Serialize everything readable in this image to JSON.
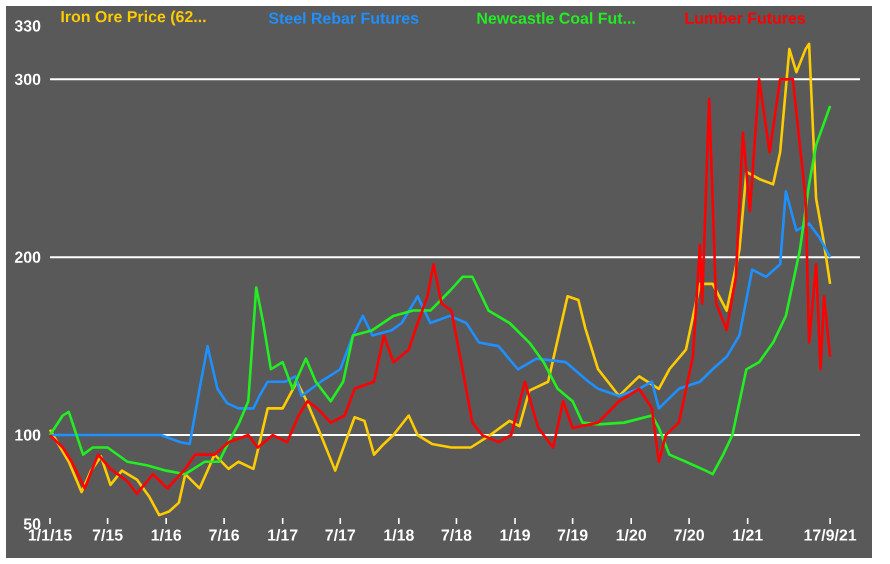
{
  "chart_data": {
    "type": "line",
    "legend": "top",
    "grid": "y",
    "line_style": "solid",
    "xlim": [
      "2015-01-01",
      "2021-12-20"
    ],
    "ylim": [
      50,
      330
    ],
    "yticks": [
      50,
      100,
      200,
      300,
      330
    ],
    "xticks": [
      {
        "value": "2015-01-01",
        "label": "1/1/15"
      },
      {
        "value": "2015-07-01",
        "label": "7/15"
      },
      {
        "value": "2016-01-01",
        "label": "1/16"
      },
      {
        "value": "2016-07-01",
        "label": "7/16"
      },
      {
        "value": "2017-01-01",
        "label": "1/17"
      },
      {
        "value": "2017-07-01",
        "label": "7/17"
      },
      {
        "value": "2018-01-01",
        "label": "1/18"
      },
      {
        "value": "2018-07-01",
        "label": "7/18"
      },
      {
        "value": "2019-01-01",
        "label": "1/19"
      },
      {
        "value": "2019-07-01",
        "label": "7/19"
      },
      {
        "value": "2020-01-01",
        "label": "1/20"
      },
      {
        "value": "2020-07-01",
        "label": "7/20"
      },
      {
        "value": "2021-01-01",
        "label": "1/21"
      },
      {
        "value": "2021-09-17",
        "label": "17/9/21"
      }
    ],
    "series": [
      {
        "name": "Iron Ore Price (62...",
        "color": "#ffcc00",
        "x": [
          "2015-01-01",
          "2015-03-01",
          "2015-04-10",
          "2015-05-10",
          "2015-06-10",
          "2015-07-10",
          "2015-08-15",
          "2015-10-01",
          "2015-11-10",
          "2015-12-10",
          "2016-01-10",
          "2016-02-10",
          "2016-03-01",
          "2016-04-15",
          "2016-06-01",
          "2016-07-15",
          "2016-08-15",
          "2016-10-01",
          "2016-11-15",
          "2017-01-01",
          "2017-02-15",
          "2017-03-15",
          "2017-05-01",
          "2017-06-15",
          "2017-07-15",
          "2017-08-15",
          "2017-09-15",
          "2017-10-15",
          "2017-11-15",
          "2017-12-15",
          "2018-02-01",
          "2018-03-01",
          "2018-04-15",
          "2018-06-15",
          "2018-08-15",
          "2018-10-15",
          "2018-12-15",
          "2019-01-15",
          "2019-02-15",
          "2019-04-15",
          "2019-06-15",
          "2019-07-19",
          "2019-08-10",
          "2019-09-19",
          "2019-11-24",
          "2020-01-26",
          "2020-03-28",
          "2020-04-30",
          "2020-06-21",
          "2020-08-04",
          "2020-09-13",
          "2020-10-27",
          "2020-12-06",
          "2020-12-28",
          "2021-02-06",
          "2021-03-22",
          "2021-04-13",
          "2021-05-12",
          "2021-06-03",
          "2021-07-02",
          "2021-07-13",
          "2021-08-04",
          "2021-08-26",
          "2021-09-17"
        ],
        "values": [
          103,
          85,
          68,
          80,
          88,
          72,
          80,
          75,
          65,
          55,
          57,
          62,
          78,
          70,
          89,
          81,
          85,
          81,
          115,
          115,
          130,
          120,
          100,
          80,
          95,
          110,
          108,
          89,
          95,
          100,
          111,
          100,
          95,
          93,
          93,
          100,
          108,
          105,
          125,
          130,
          178,
          176,
          160,
          137,
          122,
          133,
          126,
          137,
          148,
          185,
          185,
          170,
          204,
          248,
          244,
          241,
          259,
          317,
          304,
          317,
          320,
          233,
          211,
          185
        ]
      },
      {
        "name": "Steel Rebar Futures",
        "color": "#1e90ff",
        "x": [
          "2015-01-01",
          "2015-12-15",
          "2016-02-15",
          "2016-03-15",
          "2016-04-15",
          "2016-05-10",
          "2016-06-10",
          "2016-07-10",
          "2016-08-15",
          "2016-10-01",
          "2016-10-20",
          "2016-11-15",
          "2017-01-10",
          "2017-02-10",
          "2017-03-01",
          "2017-05-01",
          "2017-07-01",
          "2017-08-10",
          "2017-09-10",
          "2017-10-10",
          "2017-12-10",
          "2018-01-10",
          "2018-03-01",
          "2018-04-10",
          "2018-06-10",
          "2018-08-01",
          "2018-09-10",
          "2018-11-10",
          "2019-01-10",
          "2019-03-10",
          "2019-06-10",
          "2019-08-20",
          "2019-09-19",
          "2019-11-24",
          "2020-01-26",
          "2020-03-06",
          "2020-03-28",
          "2020-05-30",
          "2020-08-04",
          "2020-09-13",
          "2020-10-27",
          "2020-12-06",
          "2021-01-15",
          "2021-02-28",
          "2021-04-13",
          "2021-05-01",
          "2021-06-03",
          "2021-07-13",
          "2021-08-15",
          "2021-09-17"
        ],
        "values": [
          100,
          100,
          96,
          95,
          126,
          150,
          126,
          118,
          115,
          115,
          122,
          130,
          130,
          133,
          122,
          130,
          137,
          156,
          167,
          156,
          159,
          163,
          178,
          163,
          167,
          163,
          152,
          150,
          137,
          143,
          141,
          130,
          126,
          122,
          126,
          130,
          115,
          126,
          130,
          137,
          144,
          156,
          193,
          189,
          196,
          237,
          215,
          219,
          211,
          200
        ]
      },
      {
        "name": "Newcastle Coal Fut...",
        "color": "#22ee22",
        "x": [
          "2015-01-01",
          "2015-02-10",
          "2015-03-01",
          "2015-04-15",
          "2015-05-15",
          "2015-07-01",
          "2015-09-01",
          "2015-11-01",
          "2016-01-01",
          "2016-03-01",
          "2016-05-01",
          "2016-06-15",
          "2016-07-15",
          "2016-08-15",
          "2016-09-15",
          "2016-10-10",
          "2016-11-01",
          "2016-11-25",
          "2017-01-01",
          "2017-02-01",
          "2017-03-15",
          "2017-04-15",
          "2017-06-01",
          "2017-07-10",
          "2017-08-10",
          "2017-10-10",
          "2017-12-15",
          "2018-02-15",
          "2018-04-10",
          "2018-06-10",
          "2018-07-20",
          "2018-08-20",
          "2018-10-10",
          "2018-12-15",
          "2019-02-15",
          "2019-04-01",
          "2019-05-15",
          "2019-07-01",
          "2019-08-01",
          "2019-09-19",
          "2019-12-10",
          "2020-03-06",
          "2020-03-28",
          "2020-04-30",
          "2020-06-21",
          "2020-08-22",
          "2020-09-13",
          "2020-10-16",
          "2020-11-14",
          "2020-12-28",
          "2021-02-06",
          "2021-03-22",
          "2021-05-01",
          "2021-06-14",
          "2021-07-13",
          "2021-08-04",
          "2021-09-17"
        ],
        "values": [
          100,
          111,
          113,
          89,
          93,
          93,
          85,
          83,
          80,
          78,
          85,
          85,
          96,
          106,
          119,
          183,
          163,
          137,
          141,
          126,
          143,
          130,
          119,
          130,
          156,
          159,
          167,
          170,
          170,
          181,
          189,
          189,
          170,
          163,
          152,
          141,
          126,
          119,
          107,
          106,
          107,
          111,
          104,
          89,
          85,
          80,
          78,
          89,
          100,
          137,
          141,
          152,
          167,
          204,
          241,
          263,
          285
        ]
      },
      {
        "name": "Lumber Futures",
        "color": "#ff0000",
        "x": [
          "2015-01-01",
          "2015-02-10",
          "2015-03-10",
          "2015-04-20",
          "2015-06-01",
          "2015-07-10",
          "2015-09-01",
          "2015-10-01",
          "2015-11-20",
          "2016-01-05",
          "2016-03-01",
          "2016-04-01",
          "2016-06-01",
          "2016-07-15",
          "2016-09-15",
          "2016-10-15",
          "2016-12-01",
          "2017-01-15",
          "2017-02-20",
          "2017-03-20",
          "2017-04-20",
          "2017-06-01",
          "2017-07-15",
          "2017-08-15",
          "2017-10-15",
          "2017-11-15",
          "2017-12-15",
          "2018-02-01",
          "2018-03-01",
          "2018-04-01",
          "2018-04-20",
          "2018-05-15",
          "2018-06-15",
          "2018-07-20",
          "2018-08-20",
          "2018-09-20",
          "2018-11-10",
          "2018-12-20",
          "2019-02-01",
          "2019-03-15",
          "2019-05-01",
          "2019-06-01",
          "2019-07-01",
          "2019-09-19",
          "2019-11-24",
          "2020-01-26",
          "2020-03-06",
          "2020-03-28",
          "2020-04-19",
          "2020-05-30",
          "2020-07-13",
          "2020-08-04",
          "2020-08-11",
          "2020-09-02",
          "2020-09-24",
          "2020-10-27",
          "2020-11-25",
          "2020-12-17",
          "2021-01-08",
          "2021-02-06",
          "2021-03-11",
          "2021-04-13",
          "2021-05-23",
          "2021-07-02",
          "2021-07-13",
          "2021-08-04",
          "2021-08-18",
          "2021-08-29",
          "2021-09-17"
        ],
        "values": [
          100,
          93,
          85,
          70,
          89,
          81,
          74,
          67,
          78,
          70,
          81,
          89,
          89,
          96,
          100,
          93,
          100,
          96,
          111,
          119,
          115,
          107,
          111,
          126,
          130,
          156,
          141,
          148,
          163,
          178,
          196,
          174,
          170,
          137,
          107,
          100,
          96,
          100,
          130,
          104,
          93,
          119,
          104,
          107,
          119,
          126,
          115,
          85,
          100,
          107,
          144,
          207,
          174,
          289,
          174,
          159,
          189,
          270,
          226,
          300,
          259,
          300,
          300,
          233,
          152,
          196,
          137,
          178,
          144
        ]
      }
    ]
  }
}
